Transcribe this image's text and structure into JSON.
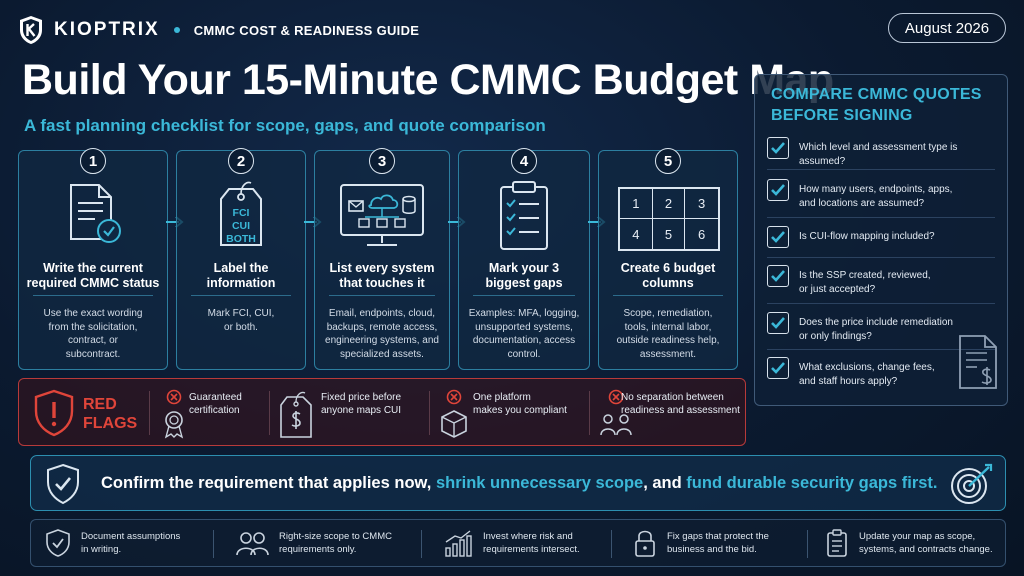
{
  "header": {
    "brand": "KIOPTRIX",
    "guide": "CMMC COST & READINESS GUIDE",
    "date": "August 2026",
    "title": "Build Your 15-Minute CMMC Budget Map",
    "subtitle": "A fast planning checklist for scope, gaps, and quote comparison"
  },
  "steps": [
    {
      "num": "1",
      "title_l1": "Write the current",
      "title_l2": "required CMMC status",
      "desc": [
        "Use the exact wording",
        "from the solicitation,",
        "contract, or",
        "subcontract."
      ],
      "icon": "document-check-icon"
    },
    {
      "num": "2",
      "title_l1": "Label the",
      "title_l2": "information",
      "desc": [
        "Mark FCI, CUI,",
        "or both."
      ],
      "icon": "tag-icon",
      "tag_lines": [
        "FCI",
        "CUI",
        "BOTH"
      ]
    },
    {
      "num": "3",
      "title_l1": "List every system",
      "title_l2": "that touches it",
      "desc": [
        "Email, endpoints, cloud,",
        "backups, remote access,",
        "engineering systems, and",
        "specialized assets."
      ],
      "icon": "monitor-cloud-icon"
    },
    {
      "num": "4",
      "title_l1": "Mark your 3",
      "title_l2": "biggest gaps",
      "desc": [
        "Examples: MFA, logging,",
        "unsupported systems,",
        "documentation, access",
        "control."
      ],
      "icon": "clipboard-checklist-icon"
    },
    {
      "num": "5",
      "title_l1": "Create 6 budget",
      "title_l2": "columns",
      "desc": [
        "Scope, remediation,",
        "tools, internal labor,",
        "outside readiness help,",
        "assessment."
      ],
      "icon": "grid-icon",
      "grid": [
        "1",
        "2",
        "3",
        "4",
        "5",
        "6"
      ]
    }
  ],
  "panel": {
    "title_l1": "COMPARE CMMC QUOTES",
    "title_l2": "BEFORE SIGNING",
    "items": [
      [
        "Which level and assessment type is assumed?"
      ],
      [
        "How many users, endpoints, apps,",
        "and locations are assumed?"
      ],
      [
        "Is CUI-flow mapping included?"
      ],
      [
        "Is the SSP created, reviewed,",
        "or just accepted?"
      ],
      [
        "Does the price include remediation",
        "or only findings?"
      ],
      [
        "What exclusions, change fees,",
        "and staff hours apply?"
      ]
    ]
  },
  "red_flags": {
    "label_l1": "RED",
    "label_l2": "FLAGS",
    "items": [
      [
        "Guaranteed",
        "certification"
      ],
      [
        "Fixed price before",
        "anyone maps CUI"
      ],
      [
        "One platform",
        "makes you compliant"
      ],
      [
        "No separation between",
        "readiness and assessment"
      ]
    ]
  },
  "banner": {
    "part1": "Confirm the requirement that applies now, ",
    "part2": "shrink unnecessary scope",
    "part3": ", and ",
    "part4": "fund durable security gaps first."
  },
  "tips": [
    [
      "Document assumptions",
      "in writing."
    ],
    [
      "Right-size scope to CMMC",
      "requirements only."
    ],
    [
      "Invest where risk and",
      "requirements intersect."
    ],
    [
      "Fix gaps that protect the",
      "business and the bid."
    ],
    [
      "Update your map as scope,",
      "systems, and contracts change."
    ]
  ],
  "colors": {
    "accent": "#3bb8d8",
    "danger": "#e0453a",
    "background": "#0b1a30"
  }
}
